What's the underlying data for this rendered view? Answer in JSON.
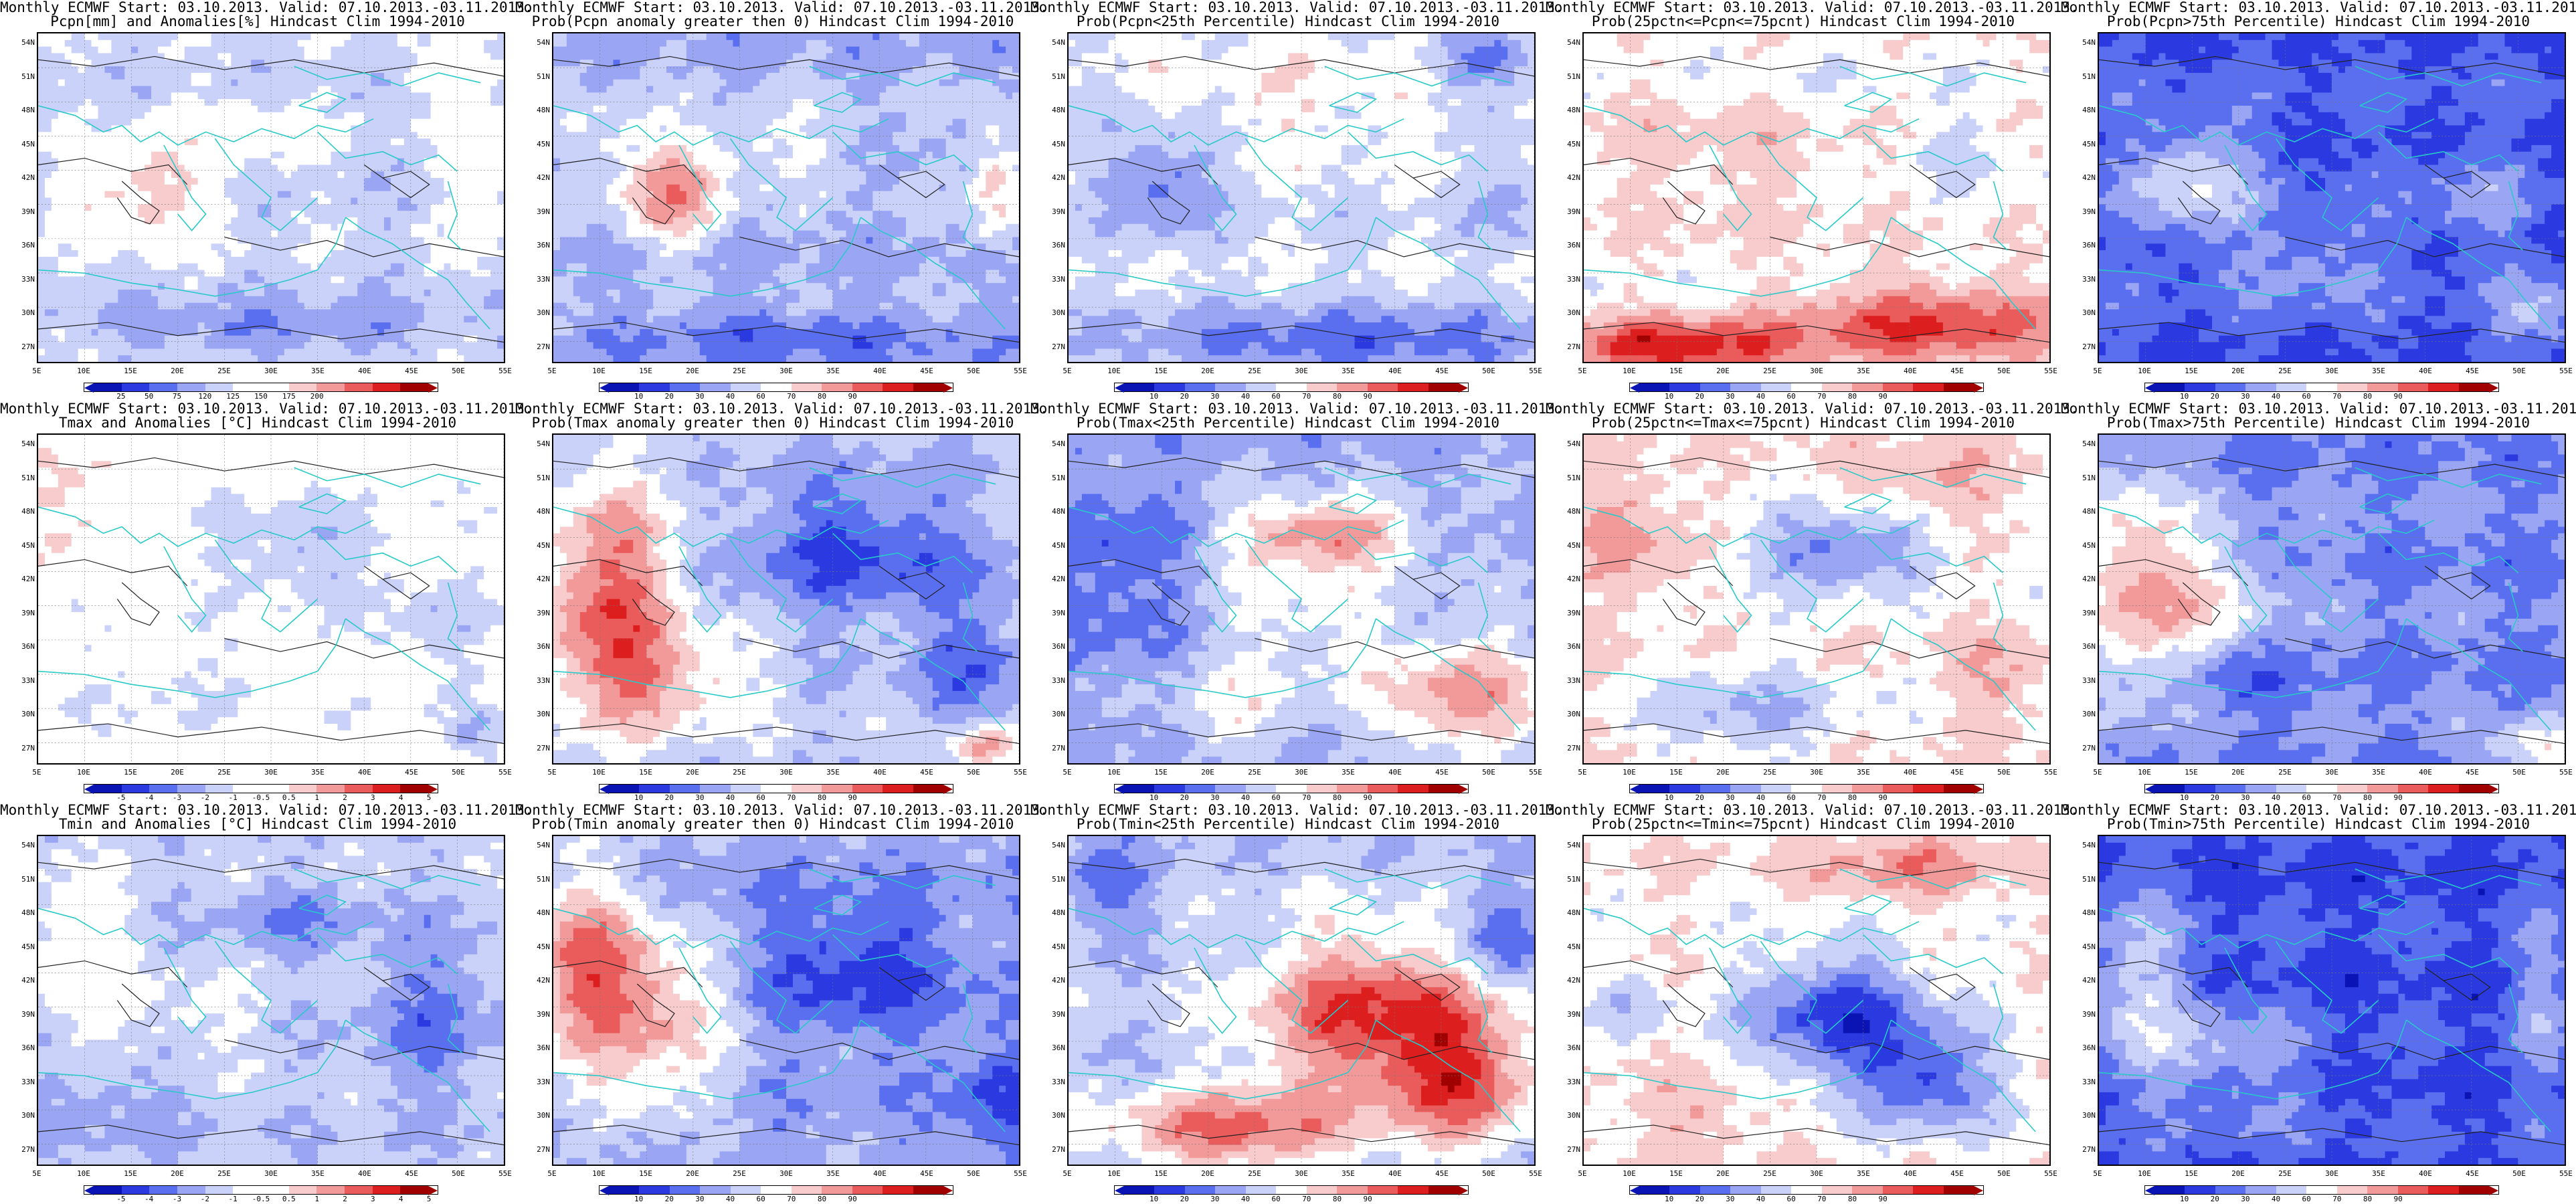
{
  "colors": {
    "blue_dark": "#0a14b4",
    "blue": "#2a3ae0",
    "blue_mid": "#5a6ef0",
    "blue_light": "#9aa6f4",
    "blue_pale": "#cad2fa",
    "white": "#ffffff",
    "red_pale": "#f8cccc",
    "red_light": "#f29a9a",
    "red_mid": "#ea5c5c",
    "red": "#dc1e1e",
    "red_dark": "#a00000",
    "coast": "#29c9c9",
    "contour": "#222222"
  },
  "lat_labels": [
    "54N",
    "51N",
    "48N",
    "45N",
    "42N",
    "39N",
    "36N",
    "33N",
    "30N",
    "27N"
  ],
  "lon_labels": [
    "5E",
    "10E",
    "15E",
    "20E",
    "25E",
    "30E",
    "35E",
    "40E",
    "45E",
    "50E",
    "55E"
  ],
  "scales": {
    "precip_anom": {
      "labels": [
        "25",
        "50",
        "75",
        "120",
        "125",
        "150",
        "175",
        "200"
      ]
    },
    "prob": {
      "labels": [
        "10",
        "20",
        "30",
        "40",
        "60",
        "70",
        "80",
        "90"
      ]
    },
    "temp_anom": {
      "labels": [
        "-5",
        "-4",
        "-3",
        "-2",
        "-1",
        "-0.5",
        "0.5",
        "1",
        "2",
        "3",
        "4",
        "5"
      ]
    }
  },
  "panels": [
    {
      "id": "p1",
      "title1": "Monthly ECMWF Start: 03.10.2013. Valid: 07.10.2013.-03.11.2013.",
      "title2": "Pcpn[mm] and Anomalies[%] Hindcast Clim 1994-2010",
      "scale": "precip_anom",
      "pattern": "pcpn_anom"
    },
    {
      "id": "p2",
      "title1": "Monthly ECMWF Start: 03.10.2013. Valid: 07.10.2013.-03.11.2013.",
      "title2": "Prob(Pcpn anomaly greater then 0) Hindcast Clim 1994-2010",
      "scale": "prob",
      "pattern": "pcpn_pos"
    },
    {
      "id": "p3",
      "title1": "Monthly ECMWF Start: 03.10.2013. Valid: 07.10.2013.-03.11.2013.",
      "title2": "Prob(Pcpn<25th Percentile) Hindcast Clim 1994-2010",
      "scale": "prob",
      "pattern": "pcpn_low"
    },
    {
      "id": "p4",
      "title1": "Monthly ECMWF Start: 03.10.2013. Valid: 07.10.2013.-03.11.2013.",
      "title2": "Prob(25pctn<=Pcpn<=75pcnt) Hindcast Clim 1994-2010",
      "scale": "prob",
      "pattern": "pcpn_mid"
    },
    {
      "id": "p5",
      "title1": "Monthly ECMWF Start: 03.10.2013. Valid: 07.10.2013.-03.11.2013.",
      "title2": "Prob(Pcpn>75th Percentile) Hindcast Clim 1994-2010",
      "scale": "prob",
      "pattern": "pcpn_high"
    },
    {
      "id": "p6",
      "title1": "Monthly ECMWF Start: 03.10.2013. Valid: 07.10.2013.-03.11.2013.",
      "title2": "Tmax and Anomalies [°C] Hindcast Clim 1994-2010",
      "scale": "temp_anom",
      "pattern": "tmax_anom"
    },
    {
      "id": "p7",
      "title1": "Monthly ECMWF Start: 03.10.2013. Valid: 07.10.2013.-03.11.2013.",
      "title2": "Prob(Tmax anomaly greater then 0) Hindcast Clim 1994-2010",
      "scale": "prob",
      "pattern": "tmax_pos"
    },
    {
      "id": "p8",
      "title1": "Monthly ECMWF Start: 03.10.2013. Valid: 07.10.2013.-03.11.2013.",
      "title2": "Prob(Tmax<25th Percentile) Hindcast Clim 1994-2010",
      "scale": "prob",
      "pattern": "tmax_low"
    },
    {
      "id": "p9",
      "title1": "Monthly ECMWF Start: 03.10.2013. Valid: 07.10.2013.-03.11.2013.",
      "title2": "Prob(25pctn<=Tmax<=75pcnt) Hindcast Clim 1994-2010",
      "scale": "prob",
      "pattern": "tmax_mid"
    },
    {
      "id": "p10",
      "title1": "Monthly ECMWF Start: 03.10.2013. Valid: 07.10.2013.-03.11.2013.",
      "title2": "Prob(Tmax>75th Percentile) Hindcast Clim 1994-2010",
      "scale": "prob",
      "pattern": "tmax_high"
    },
    {
      "id": "p11",
      "title1": "Monthly ECMWF Start: 03.10.2013. Valid: 07.10.2013.-03.11.2013.",
      "title2": "Tmin and Anomalies [°C] Hindcast Clim 1994-2010",
      "scale": "temp_anom",
      "pattern": "tmin_anom"
    },
    {
      "id": "p12",
      "title1": "Monthly ECMWF Start: 03.10.2013. Valid: 07.10.2013.-03.11.2013.",
      "title2": "Prob(Tmin anomaly greater then 0) Hindcast Clim 1994-2010",
      "scale": "prob",
      "pattern": "tmin_pos"
    },
    {
      "id": "p13",
      "title1": "Monthly ECMWF Start: 03.10.2013. Valid: 07.10.2013.-03.11.2013.",
      "title2": "Prob(Tmin<25th Percentile) Hindcast Clim 1994-2010",
      "scale": "prob",
      "pattern": "tmin_low"
    },
    {
      "id": "p14",
      "title1": "Monthly ECMWF Start: 03.10.2013. Valid: 07.10.2013.-03.11.2013.",
      "title2": "Prob(25pctn<=Tmin<=75pcnt) Hindcast Clim 1994-2010",
      "scale": "prob",
      "pattern": "tmin_mid"
    },
    {
      "id": "p15",
      "title1": "Monthly ECMWF Start: 03.10.2013. Valid: 07.10.2013.-03.11.2013.",
      "title2": "Prob(Tmin>75th Percentile) Hindcast Clim 1994-2010",
      "scale": "prob",
      "pattern": "tmin_high"
    }
  ]
}
